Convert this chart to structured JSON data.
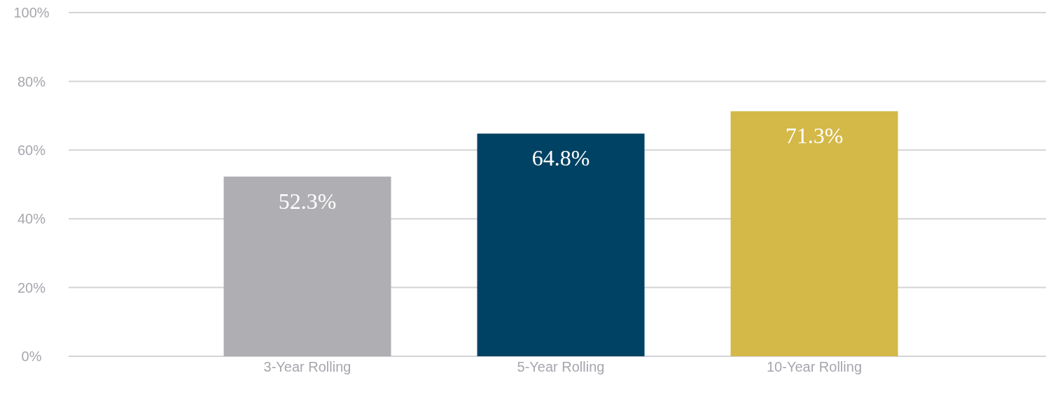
{
  "chart_data": {
    "type": "bar",
    "categories": [
      "3-Year Rolling",
      "5-Year Rolling",
      "10-Year Rolling"
    ],
    "values": [
      52.3,
      64.8,
      71.3
    ],
    "colors": [
      "#afaeb2",
      "#004263",
      "#d4b848"
    ],
    "value_labels": [
      "52.3%",
      "64.8%",
      "71.3%"
    ],
    "ylim": [
      0,
      100
    ],
    "yticks": [
      {
        "value": 0,
        "label": "0%"
      },
      {
        "value": 20,
        "label": "20%"
      },
      {
        "value": 40,
        "label": "40%"
      },
      {
        "value": 60,
        "label": "60%"
      },
      {
        "value": 80,
        "label": "80%"
      },
      {
        "value": 100,
        "label": "100%"
      }
    ],
    "grid": "y"
  }
}
